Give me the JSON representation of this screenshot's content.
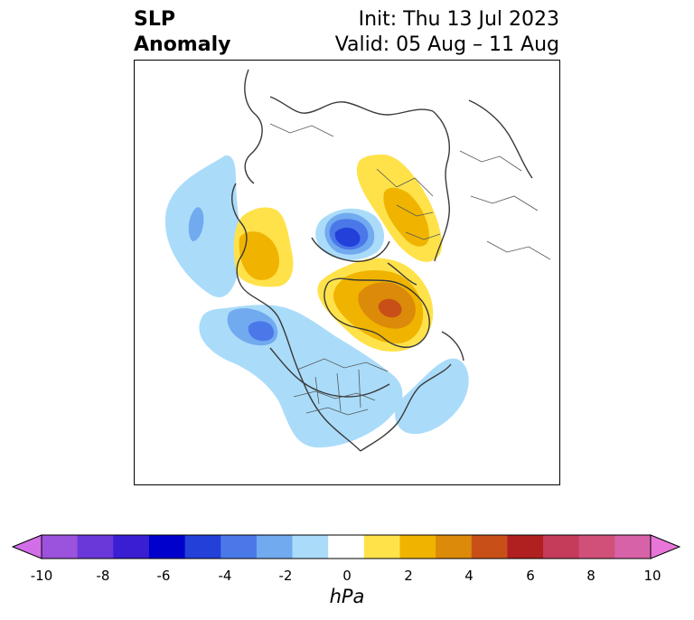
{
  "title": {
    "left_line1": "SLP",
    "left_line2": "Anomaly",
    "right_line1": "Init: Thu 13 Jul 2023",
    "right_line2": "Valid: 05 Aug – 11 Aug"
  },
  "colorbar": {
    "label": "hPa",
    "ticks": [
      "-10",
      "-8",
      "-6",
      "-4",
      "-2",
      "0",
      "2",
      "4",
      "6",
      "8",
      "10"
    ],
    "colors": [
      "#d26ee8",
      "#9b52dc",
      "#6a38d8",
      "#3a1ed2",
      "#0000cc",
      "#2340d8",
      "#4a78e8",
      "#72aaf0",
      "#aadcfa",
      "#ffffff",
      "#ffe24a",
      "#f0b400",
      "#dc8a0a",
      "#c85018",
      "#b02020",
      "#c43c5a",
      "#d0507a",
      "#d862a8",
      "#e876d8"
    ]
  },
  "map": {
    "projection": "north-polar-stereographic",
    "field": "SLP anomaly",
    "features": [
      {
        "name": "Arctic low",
        "sign": "negative"
      },
      {
        "name": "Greenland high",
        "sign": "positive"
      },
      {
        "name": "Scandinavia high",
        "sign": "positive"
      },
      {
        "name": "Alaska high",
        "sign": "positive"
      },
      {
        "name": "Gulf of Alaska low",
        "sign": "negative"
      },
      {
        "name": "North Pacific low",
        "sign": "negative"
      },
      {
        "name": "Western Atlantic low",
        "sign": "negative"
      }
    ]
  }
}
